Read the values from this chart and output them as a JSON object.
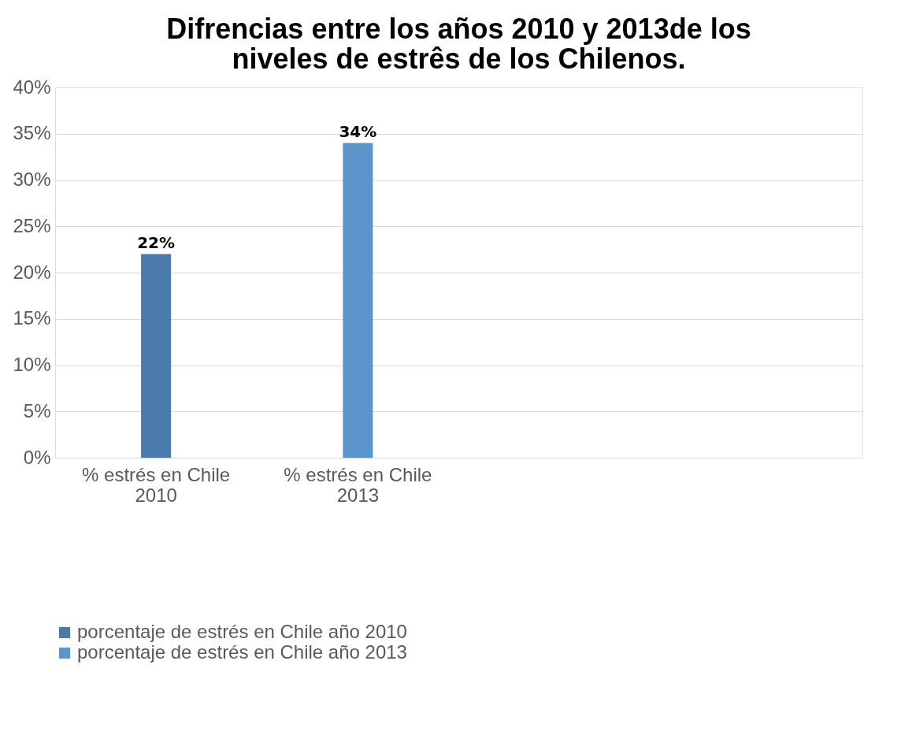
{
  "chart_data": {
    "type": "bar",
    "title": [
      "Difrencias entre los años 2010 y 2013de los",
      "niveles de estrês de los Chilenos."
    ],
    "categories": [
      "% estrés en Chile 2010",
      "% estrés en Chile 2013",
      null,
      null
    ],
    "series": [
      {
        "name": "porcentaje de estrés en Chile año 2010",
        "color": "#4a7aab",
        "values": [
          22,
          null,
          null,
          null
        ],
        "value_labels": [
          "22%",
          null,
          null,
          null
        ]
      },
      {
        "name": "porcentaje de estrés en Chile año 2013",
        "color": "#5b95cb",
        "values": [
          null,
          34,
          null,
          null
        ],
        "value_labels": [
          null,
          "34%",
          null,
          null
        ]
      }
    ],
    "ylim": [
      0,
      40
    ],
    "yticks": [
      {
        "value": 0,
        "label": "0%"
      },
      {
        "value": 5,
        "label": "5%"
      },
      {
        "value": 10,
        "label": "10%"
      },
      {
        "value": 15,
        "label": "15%"
      },
      {
        "value": 20,
        "label": "20%"
      },
      {
        "value": 25,
        "label": "25%"
      },
      {
        "value": 30,
        "label": "30%"
      },
      {
        "value": 35,
        "label": "35%"
      },
      {
        "value": 40,
        "label": "40%"
      }
    ],
    "grid": "y",
    "legend": "bottom"
  }
}
